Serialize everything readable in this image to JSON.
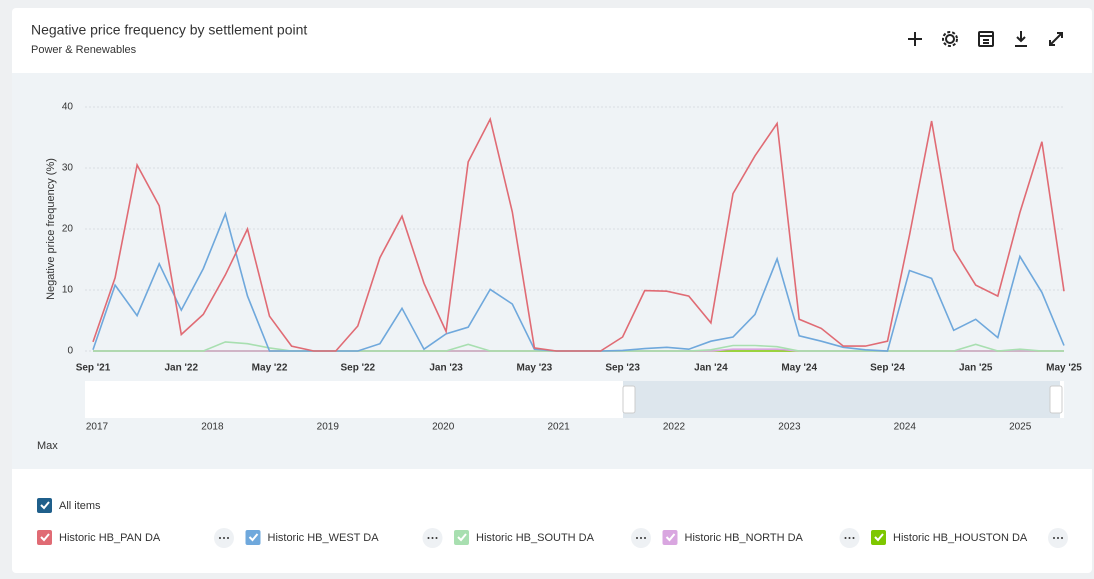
{
  "chart_data": {
    "type": "line",
    "title": "Negative price frequency by settlement point",
    "subtitle": "Power & Renewables",
    "y_label": "Negative price frequency (%)",
    "categories": [
      "Sep '21",
      null,
      null,
      null,
      "Jan '22",
      null,
      null,
      null,
      "May '22",
      null,
      null,
      null,
      "Sep '22",
      null,
      null,
      null,
      "Jan '23",
      null,
      null,
      null,
      "May '23",
      null,
      null,
      null,
      "Sep '23",
      null,
      null,
      null,
      "Jan '24",
      null,
      null,
      null,
      "May '24",
      null,
      null,
      null,
      "Sep '24",
      null,
      null,
      null,
      "Jan '25",
      null,
      null,
      null,
      "May '25"
    ],
    "ylim": [
      0,
      40
    ],
    "yticks": [
      0,
      10,
      20,
      30,
      40
    ],
    "grid": true,
    "series": [
      {
        "name": "Historic HB_PAN DA",
        "color": "#e06b74",
        "values": [
          1.5,
          12,
          30.5,
          23.8,
          2.7,
          6,
          12.5,
          20,
          5.7,
          0.8,
          0,
          0,
          4.1,
          15.3,
          22.1,
          11.1,
          3.2,
          31,
          38,
          22.8,
          0.5,
          0,
          0,
          0,
          2.3,
          9.9,
          9.8,
          9,
          4.6,
          25.8,
          32,
          37.3,
          5.2,
          3.7,
          0.8,
          0.8,
          1.6,
          19,
          37.7,
          16.6,
          10.8,
          9,
          22.7,
          34.3,
          9.8
        ]
      },
      {
        "name": "Historic HB_WEST DA",
        "color": "#6fa8dc",
        "values": [
          0.2,
          10.8,
          5.8,
          14.3,
          6.7,
          13.5,
          22.5,
          9,
          0,
          0,
          0,
          0,
          0,
          1.2,
          7,
          0.3,
          2.8,
          3.9,
          10.1,
          7.7,
          0.3,
          0,
          0,
          0,
          0.1,
          0.4,
          0.6,
          0.3,
          1.6,
          2.3,
          6,
          15.1,
          2.5,
          1.6,
          0.6,
          0.2,
          0,
          13.2,
          11.9,
          3.4,
          5.2,
          2.2,
          15.5,
          9.6,
          0.9
        ]
      },
      {
        "name": "Historic HB_SOUTH DA",
        "color": "#a8dfb0",
        "values": [
          0,
          0,
          0,
          0,
          0,
          0,
          1.5,
          1.2,
          0.5,
          0,
          0,
          0,
          0,
          0,
          0,
          0,
          0,
          1.1,
          0,
          0,
          0,
          0,
          0,
          0,
          0,
          0,
          0,
          0,
          0.2,
          0.9,
          0.9,
          0.7,
          0,
          0,
          0,
          0,
          0,
          0,
          0,
          0,
          1.1,
          0,
          0.3,
          0,
          0
        ]
      },
      {
        "name": "Historic HB_NORTH DA",
        "color": "#d9a6e0",
        "values": [
          0,
          0,
          0,
          0,
          0,
          0,
          0,
          0,
          0,
          0,
          0,
          0,
          0,
          0,
          0,
          0,
          0,
          0,
          0,
          0,
          0,
          0,
          0,
          0,
          0,
          0,
          0,
          0,
          0,
          0.3,
          0.3,
          0.3,
          0,
          0,
          0,
          0,
          0,
          0,
          0,
          0,
          0,
          0,
          0,
          0,
          0
        ]
      },
      {
        "name": "Historic HB_HOUSTON DA",
        "color": "#7ec700",
        "values": [
          0,
          0,
          0,
          0,
          0,
          0,
          0,
          0,
          0,
          0,
          0,
          0,
          0,
          0,
          0,
          0,
          0,
          0,
          0,
          0,
          0,
          0,
          0,
          0,
          0,
          0,
          0,
          0,
          0,
          0,
          0,
          0,
          0,
          0,
          0,
          0,
          0,
          0,
          0,
          0,
          0,
          0,
          0,
          0,
          0
        ]
      }
    ]
  },
  "navigator": {
    "labels": [
      "2017",
      "2018",
      "2019",
      "2020",
      "2021",
      "2022",
      "2023",
      "2024",
      "2025"
    ]
  },
  "range_label": "Max",
  "all_items": "All items"
}
